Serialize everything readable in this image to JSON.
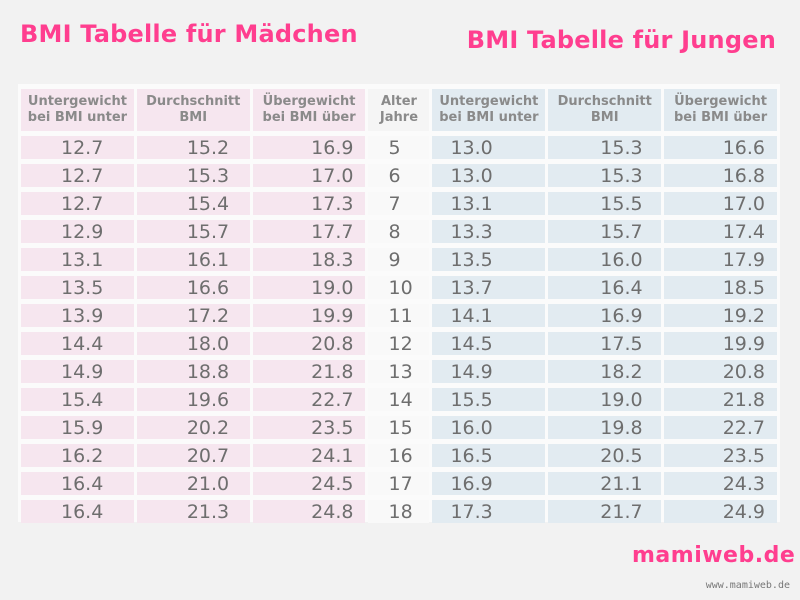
{
  "titles": {
    "girls": "BMI Tabelle für Mädchen",
    "boys": "BMI Tabelle für Jungen"
  },
  "headers": {
    "girls_under": [
      "Untergewicht",
      "bei BMI unter"
    ],
    "girls_avg": [
      "Durchschnitt",
      "BMI"
    ],
    "girls_over": [
      "Übergewicht",
      "bei BMI über"
    ],
    "age": [
      "Alter",
      "Jahre"
    ],
    "boys_under": [
      "Untergewicht",
      "bei BMI unter"
    ],
    "boys_avg": [
      "Durchschnitt",
      "BMI"
    ],
    "boys_over": [
      "Übergewicht",
      "bei BMI über"
    ]
  },
  "rows": [
    {
      "girls": [
        "12.7",
        "15.2",
        "16.9"
      ],
      "age": "5",
      "boys": [
        "13.0",
        "15.3",
        "16.6"
      ]
    },
    {
      "girls": [
        "12.7",
        "15.3",
        "17.0"
      ],
      "age": "6",
      "boys": [
        "13.0",
        "15.3",
        "16.8"
      ]
    },
    {
      "girls": [
        "12.7",
        "15.4",
        "17.3"
      ],
      "age": "7",
      "boys": [
        "13.1",
        "15.5",
        "17.0"
      ]
    },
    {
      "girls": [
        "12.9",
        "15.7",
        "17.7"
      ],
      "age": "8",
      "boys": [
        "13.3",
        "15.7",
        "17.4"
      ]
    },
    {
      "girls": [
        "13.1",
        "16.1",
        "18.3"
      ],
      "age": "9",
      "boys": [
        "13.5",
        "16.0",
        "17.9"
      ]
    },
    {
      "girls": [
        "13.5",
        "16.6",
        "19.0"
      ],
      "age": "10",
      "boys": [
        "13.7",
        "16.4",
        "18.5"
      ]
    },
    {
      "girls": [
        "13.9",
        "17.2",
        "19.9"
      ],
      "age": "11",
      "boys": [
        "14.1",
        "16.9",
        "19.2"
      ]
    },
    {
      "girls": [
        "14.4",
        "18.0",
        "20.8"
      ],
      "age": "12",
      "boys": [
        "14.5",
        "17.5",
        "19.9"
      ]
    },
    {
      "girls": [
        "14.9",
        "18.8",
        "21.8"
      ],
      "age": "13",
      "boys": [
        "14.9",
        "18.2",
        "20.8"
      ]
    },
    {
      "girls": [
        "15.4",
        "19.6",
        "22.7"
      ],
      "age": "14",
      "boys": [
        "15.5",
        "19.0",
        "21.8"
      ]
    },
    {
      "girls": [
        "15.9",
        "20.2",
        "23.5"
      ],
      "age": "15",
      "boys": [
        "16.0",
        "19.8",
        "22.7"
      ]
    },
    {
      "girls": [
        "16.2",
        "20.7",
        "24.1"
      ],
      "age": "16",
      "boys": [
        "16.5",
        "20.5",
        "23.5"
      ]
    },
    {
      "girls": [
        "16.4",
        "21.0",
        "24.5"
      ],
      "age": "17",
      "boys": [
        "16.9",
        "21.1",
        "24.3"
      ]
    },
    {
      "girls": [
        "16.4",
        "21.3",
        "24.8"
      ],
      "age": "18",
      "boys": [
        "17.3",
        "21.7",
        "24.9"
      ]
    }
  ],
  "logo": "mamiweb.de",
  "url": "www.mamiweb.de",
  "colors": {
    "accent": "#ff3e8f",
    "girls_bg": "#f6e6ef",
    "boys_bg": "#e2ebf1",
    "text": "#6e6e6e"
  }
}
